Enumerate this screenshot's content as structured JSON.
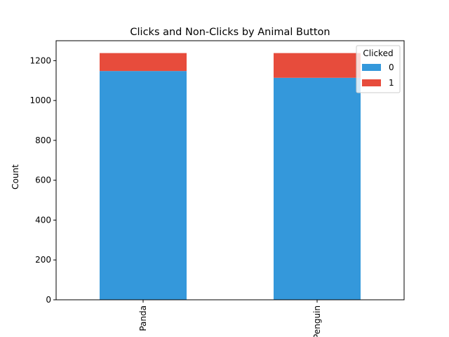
{
  "chart_data": {
    "type": "bar",
    "stacked": true,
    "title": "Clicks and Non-Clicks by Animal Button",
    "xlabel": "",
    "ylabel": "Count",
    "categories": [
      "Panda",
      "Penguin"
    ],
    "series": [
      {
        "name": "0",
        "values": [
          1148,
          1114
        ],
        "color": "#3498db"
      },
      {
        "name": "1",
        "values": [
          90,
          124
        ],
        "color": "#e74c3c"
      }
    ],
    "ylim": [
      0,
      1300
    ],
    "yticks": [
      0,
      200,
      400,
      600,
      800,
      1000,
      1200
    ],
    "grid": false,
    "legend": {
      "title": "Clicked",
      "placement": "top-right"
    }
  }
}
